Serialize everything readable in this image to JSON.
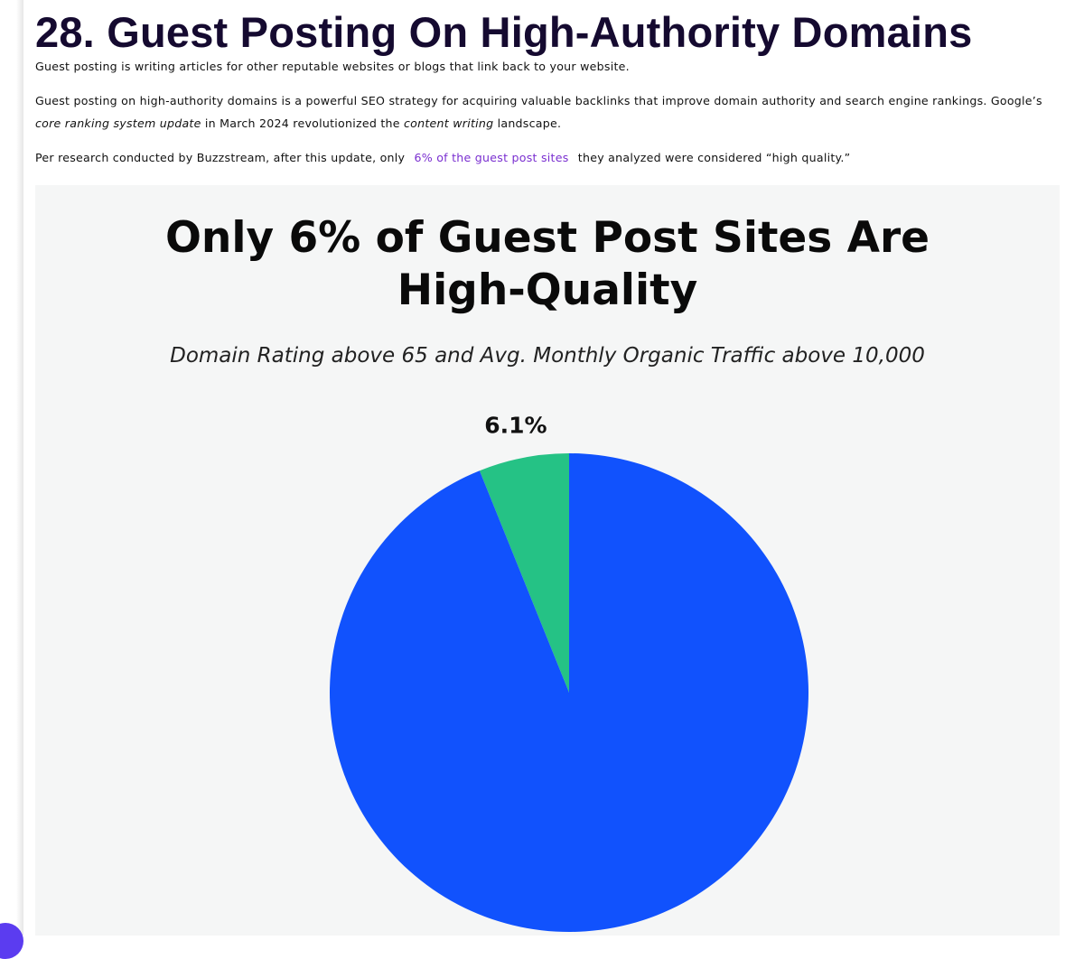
{
  "article": {
    "heading": "28. Guest Posting On High-Authority Domains",
    "paragraphs": [
      [
        "Guest posting is writing articles for other reputable websites or blogs that link back to your website."
      ],
      [
        "Guest posting on high-authority domains is a powerful SEO strategy for acquiring valuable backlinks that improve domain authority and search engine rankings. Google’s ",
        "core ranking system update",
        " in March 2024 revolutionized the ",
        "content writing",
        " landscape."
      ],
      [
        "Per research conducted by Buzzstream, after this update, only ",
        "6% of the guest post sites",
        " they analyzed were considered “high quality.”"
      ]
    ]
  },
  "chart_data": {
    "type": "pie",
    "title": "Only 6% of Guest Post Sites Are High-Quality",
    "subtitle": "Domain Rating above 65 and Avg. Monthly Organic Traffic above 10,000",
    "values": [
      6.1,
      93.9
    ],
    "value_labels": [
      "6.1%",
      null
    ],
    "colors": [
      "#25c285",
      "#1152fd"
    ]
  }
}
